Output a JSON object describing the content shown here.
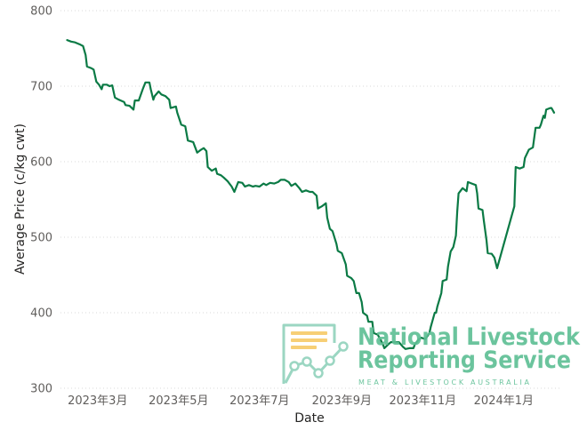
{
  "chart_data": {
    "type": "line",
    "xlabel": "Date",
    "ylabel": "Average Price (c/kg cwt)",
    "xlim": [
      "2023-02-01",
      "2024-02-14"
    ],
    "ylim": [
      300,
      800
    ],
    "grid": true,
    "y_ticks": [
      300,
      400,
      500,
      600,
      700,
      800
    ],
    "x_ticks": [
      {
        "date": "2023-03-01",
        "label": "2023年3月"
      },
      {
        "date": "2023-05-01",
        "label": "2023年5月"
      },
      {
        "date": "2023-07-01",
        "label": "2023年7月"
      },
      {
        "date": "2023-09-01",
        "label": "2023年9月"
      },
      {
        "date": "2023-11-01",
        "label": "2023年11月"
      },
      {
        "date": "2024-01-01",
        "label": "2024年1月"
      }
    ],
    "series": [
      {
        "x": [
          "2023-02-06",
          "2023-02-09",
          "2023-02-12",
          "2023-02-16",
          "2023-02-18",
          "2023-02-20",
          "2023-02-21",
          "2023-02-24",
          "2023-02-26",
          "2023-02-28",
          "2023-03-02",
          "2023-03-04",
          "2023-03-05",
          "2023-03-08",
          "2023-03-10",
          "2023-03-12",
          "2023-03-14",
          "2023-03-17",
          "2023-03-21",
          "2023-03-22",
          "2023-03-25",
          "2023-03-28",
          "2023-03-29",
          "2023-04-01",
          "2023-04-04",
          "2023-04-06",
          "2023-04-09",
          "2023-04-10",
          "2023-04-12",
          "2023-04-13",
          "2023-04-16",
          "2023-04-18",
          "2023-04-21",
          "2023-04-24",
          "2023-04-25",
          "2023-04-29",
          "2023-04-30",
          "2023-05-03",
          "2023-05-06",
          "2023-05-08",
          "2023-05-12",
          "2023-05-15",
          "2023-05-18",
          "2023-05-20",
          "2023-05-22",
          "2023-05-23",
          "2023-05-26",
          "2023-05-29",
          "2023-05-30",
          "2023-06-02",
          "2023-06-04",
          "2023-06-07",
          "2023-06-10",
          "2023-06-12",
          "2023-06-15",
          "2023-06-18",
          "2023-06-20",
          "2023-06-23",
          "2023-06-26",
          "2023-06-28",
          "2023-07-01",
          "2023-07-04",
          "2023-07-06",
          "2023-07-09",
          "2023-07-12",
          "2023-07-15",
          "2023-07-17",
          "2023-07-20",
          "2023-07-23",
          "2023-07-25",
          "2023-07-28",
          "2023-07-31",
          "2023-08-02",
          "2023-08-05",
          "2023-08-08",
          "2023-08-10",
          "2023-08-13",
          "2023-08-14",
          "2023-08-17",
          "2023-08-20",
          "2023-08-21",
          "2023-08-23",
          "2023-08-25",
          "2023-08-28",
          "2023-08-29",
          "2023-09-01",
          "2023-09-04",
          "2023-09-05",
          "2023-09-08",
          "2023-09-10",
          "2023-09-12",
          "2023-09-14",
          "2023-09-16",
          "2023-09-17",
          "2023-09-20",
          "2023-09-21",
          "2023-09-24",
          "2023-09-25",
          "2023-09-28",
          "2023-09-30",
          "2023-10-02",
          "2023-10-03",
          "2023-10-06",
          "2023-10-08",
          "2023-10-11",
          "2023-10-14",
          "2023-10-17",
          "2023-10-19",
          "2023-10-22",
          "2023-10-25",
          "2023-10-26",
          "2023-10-29",
          "2023-10-31",
          "2023-11-03",
          "2023-11-06",
          "2023-11-07",
          "2023-11-10",
          "2023-11-11",
          "2023-11-12",
          "2023-11-15",
          "2023-11-16",
          "2023-11-19",
          "2023-11-20",
          "2023-11-22",
          "2023-11-24",
          "2023-11-26",
          "2023-11-27",
          "2023-11-28",
          "2023-12-01",
          "2023-12-04",
          "2023-12-05",
          "2023-12-08",
          "2023-12-11",
          "2023-12-12",
          "2023-12-13",
          "2023-12-16",
          "2023-12-17",
          "2023-12-19",
          "2023-12-20",
          "2023-12-23",
          "2023-12-25",
          "2023-12-27",
          "2024-01-09",
          "2024-01-10",
          "2024-01-13",
          "2024-01-16",
          "2024-01-17",
          "2024-01-20",
          "2024-01-23",
          "2024-01-24",
          "2024-01-25",
          "2024-01-28",
          "2024-01-29",
          "2024-01-31",
          "2024-02-01",
          "2024-02-02",
          "2024-02-05",
          "2024-02-06",
          "2024-02-08"
        ],
        "y": [
          761,
          759,
          758,
          755,
          753,
          741,
          726,
          724,
          722,
          706,
          702,
          696,
          702,
          702,
          700,
          701,
          685,
          682,
          679,
          675,
          674,
          669,
          681,
          681,
          696,
          705,
          705,
          696,
          682,
          687,
          693,
          689,
          687,
          682,
          671,
          673,
          665,
          649,
          647,
          628,
          626,
          612,
          616,
          618,
          614,
          593,
          588,
          591,
          584,
          582,
          579,
          574,
          567,
          560,
          573,
          572,
          567,
          569,
          567,
          568,
          567,
          571,
          569,
          572,
          571,
          573,
          576,
          576,
          573,
          568,
          571,
          565,
          560,
          562,
          560,
          560,
          555,
          538,
          541,
          545,
          526,
          511,
          508,
          491,
          482,
          479,
          464,
          449,
          446,
          442,
          426,
          426,
          414,
          400,
          396,
          388,
          388,
          373,
          371,
          365,
          358,
          353,
          358,
          361,
          361,
          361,
          355,
          352,
          353,
          353,
          358,
          365,
          367,
          365,
          373,
          381,
          400,
          400,
          408,
          426,
          442,
          444,
          461,
          481,
          487,
          502,
          534,
          558,
          565,
          561,
          573,
          571,
          569,
          558,
          538,
          536,
          522,
          496,
          479,
          478,
          473,
          459,
          541,
          593,
          591,
          593,
          605,
          616,
          619,
          632,
          645,
          645,
          649,
          661,
          658,
          669,
          671,
          671,
          665
        ]
      }
    ]
  },
  "watermark": {
    "icon": "document-chart-icon",
    "line1": "National Livestock",
    "line2": "Reporting Service",
    "tagline": "MEAT & LIVESTOCK AUSTRALIA"
  },
  "colors": {
    "series_line": "#0b7a45",
    "gridline": "#d9d9d9",
    "tick_text": "#605e5c",
    "axis_title": "#252423",
    "logo_text": "#5fbf95",
    "logo_accent": "#f7cb6b",
    "logo_outline": "#93d3bd"
  }
}
